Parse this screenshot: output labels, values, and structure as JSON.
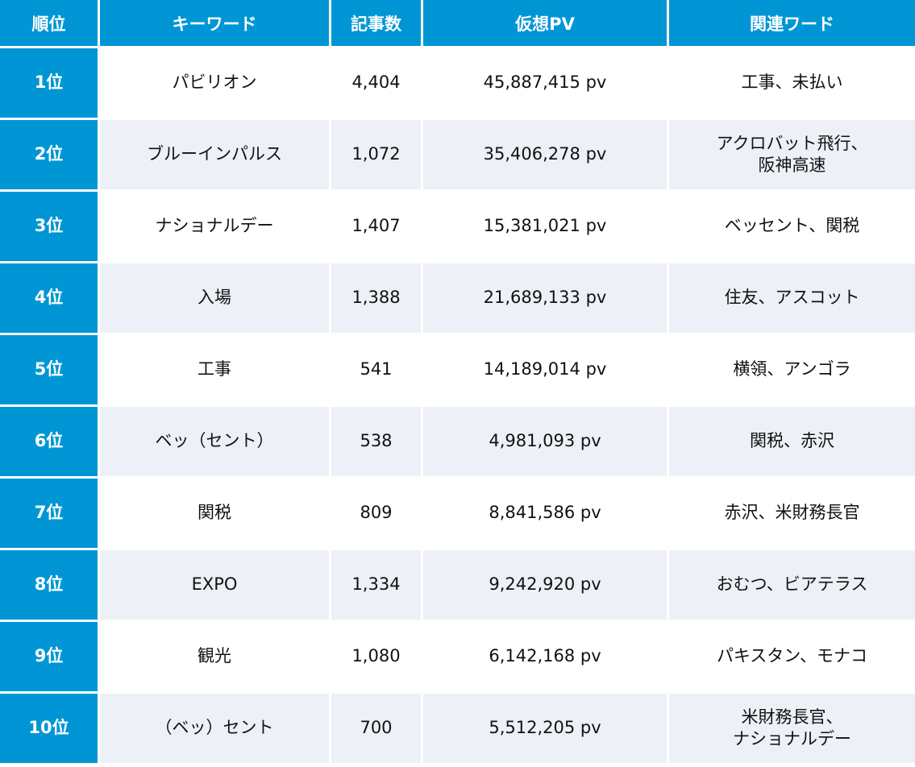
{
  "headers": [
    "順位",
    "キーワード",
    "記事数",
    "仮想PV",
    "関連ワード"
  ],
  "rows": [
    {
      "rank": "1位",
      "keyword": "パビリオン",
      "count": "4,404",
      "pv": "45,887,415 pv",
      "related": [
        "工事、未払い"
      ]
    },
    {
      "rank": "2位",
      "keyword": "ブルーインパルス",
      "count": "1,072",
      "pv": "35,406,278 pv",
      "related": [
        "アクロバット飛行、",
        "阪神高速"
      ]
    },
    {
      "rank": "3位",
      "keyword": "ナショナルデー",
      "count": "1,407",
      "pv": "15,381,021 pv",
      "related": [
        "ベッセント、関税"
      ]
    },
    {
      "rank": "4位",
      "keyword": "入場",
      "count": "1,388",
      "pv": "21,689,133 pv",
      "related": [
        "住友、アスコット"
      ]
    },
    {
      "rank": "5位",
      "keyword": "工事",
      "count": "541",
      "pv": "14,189,014 pv",
      "related": [
        "横領、アンゴラ"
      ]
    },
    {
      "rank": "6位",
      "keyword": "ベッ（セント）",
      "count": "538",
      "pv": "4,981,093 pv",
      "related": [
        "関税、赤沢"
      ]
    },
    {
      "rank": "7位",
      "keyword": "関税",
      "count": "809",
      "pv": "8,841,586 pv",
      "related": [
        "赤沢、米財務長官"
      ]
    },
    {
      "rank": "8位",
      "keyword": "EXPO",
      "count": "1,334",
      "pv": "9,242,920 pv",
      "related": [
        "おむつ、ビアテラス"
      ]
    },
    {
      "rank": "9位",
      "keyword": "観光",
      "count": "1,080",
      "pv": "6,142,168 pv",
      "related": [
        "パキスタン、モナコ"
      ]
    },
    {
      "rank": "10位",
      "keyword": "（ベッ）セント",
      "count": "700",
      "pv": "5,512,205 pv",
      "related": [
        "米財務長官、",
        "ナショナルデー"
      ]
    }
  ],
  "colors": {
    "header_bg": "#0096d6",
    "header_text": "#ffffff",
    "stripe_bg": "#eef0f7",
    "row_bg": "#ffffff",
    "cell_text": "#111111"
  }
}
